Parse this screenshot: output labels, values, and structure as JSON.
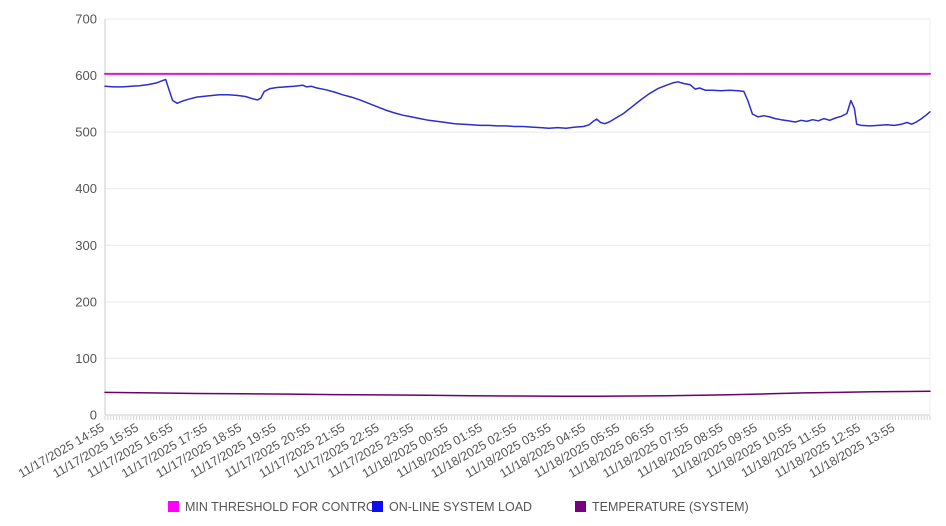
{
  "chart_data": {
    "type": "line",
    "title": "",
    "xlabel": "",
    "ylabel": "",
    "ylim": [
      0,
      700
    ],
    "yticks": [
      0,
      100,
      200,
      300,
      400,
      500,
      600,
      700
    ],
    "grid": "horizontal",
    "legend_position": "bottom",
    "x_minutes_span": 1440,
    "minor_tick_minutes": 5,
    "x_categories": [
      "11/17/2025 14:55",
      "11/17/2025 15:55",
      "11/17/2025 16:55",
      "11/17/2025 17:55",
      "11/17/2025 18:55",
      "11/17/2025 19:55",
      "11/17/2025 20:55",
      "11/17/2025 21:55",
      "11/17/2025 22:55",
      "11/17/2025 23:55",
      "11/18/2025 00:55",
      "11/18/2025 01:55",
      "11/18/2025 02:55",
      "11/18/2025 03:55",
      "11/18/2025 04:55",
      "11/18/2025 05:55",
      "11/18/2025 06:55",
      "11/18/2025 07:55",
      "11/18/2025 08:55",
      "11/18/2025 09:55",
      "11/18/2025 10:55",
      "11/18/2025 11:55",
      "11/18/2025 12:55",
      "11/18/2025 13:55"
    ],
    "axis_color": "#cccccc",
    "grid_color": "#e9e9e9",
    "tick_label_color": "#555555",
    "series": [
      {
        "name": "MIN THRESHOLD FOR CONTROL",
        "line_color": "#cc22cc",
        "swatch_color": "#ff00ff",
        "line_width": 2,
        "constant": 603
      },
      {
        "name": "ON-LINE SYSTEM LOAD",
        "line_color": "#2d2dcb",
        "swatch_color": "#0d0dee",
        "line_width": 1.5,
        "points": [
          [
            0,
            581
          ],
          [
            15,
            580
          ],
          [
            30,
            580
          ],
          [
            45,
            581
          ],
          [
            60,
            582
          ],
          [
            75,
            584
          ],
          [
            90,
            587
          ],
          [
            100,
            591
          ],
          [
            106,
            593
          ],
          [
            112,
            574
          ],
          [
            118,
            556
          ],
          [
            126,
            551
          ],
          [
            133,
            554
          ],
          [
            145,
            558
          ],
          [
            160,
            562
          ],
          [
            180,
            564
          ],
          [
            200,
            566
          ],
          [
            215,
            566
          ],
          [
            230,
            565
          ],
          [
            245,
            563
          ],
          [
            258,
            559
          ],
          [
            266,
            557
          ],
          [
            272,
            560
          ],
          [
            278,
            572
          ],
          [
            288,
            577
          ],
          [
            300,
            579
          ],
          [
            315,
            580
          ],
          [
            330,
            581
          ],
          [
            345,
            583
          ],
          [
            352,
            580
          ],
          [
            360,
            581
          ],
          [
            370,
            578
          ],
          [
            385,
            575
          ],
          [
            400,
            571
          ],
          [
            415,
            566
          ],
          [
            430,
            562
          ],
          [
            445,
            557
          ],
          [
            460,
            551
          ],
          [
            475,
            545
          ],
          [
            490,
            539
          ],
          [
            505,
            534
          ],
          [
            520,
            530
          ],
          [
            535,
            527
          ],
          [
            550,
            524
          ],
          [
            565,
            521
          ],
          [
            580,
            519
          ],
          [
            595,
            517
          ],
          [
            610,
            515
          ],
          [
            625,
            514
          ],
          [
            640,
            513
          ],
          [
            655,
            512
          ],
          [
            670,
            512
          ],
          [
            685,
            511
          ],
          [
            700,
            511
          ],
          [
            715,
            510
          ],
          [
            730,
            510
          ],
          [
            745,
            509
          ],
          [
            760,
            508
          ],
          [
            775,
            507
          ],
          [
            790,
            508
          ],
          [
            805,
            507
          ],
          [
            820,
            509
          ],
          [
            835,
            510
          ],
          [
            845,
            513
          ],
          [
            852,
            519
          ],
          [
            858,
            523
          ],
          [
            865,
            517
          ],
          [
            872,
            515
          ],
          [
            880,
            518
          ],
          [
            890,
            524
          ],
          [
            905,
            533
          ],
          [
            920,
            545
          ],
          [
            935,
            557
          ],
          [
            950,
            568
          ],
          [
            965,
            577
          ],
          [
            980,
            583
          ],
          [
            991,
            587
          ],
          [
            1000,
            589
          ],
          [
            1010,
            586
          ],
          [
            1021,
            584
          ],
          [
            1030,
            576
          ],
          [
            1038,
            578
          ],
          [
            1048,
            574
          ],
          [
            1060,
            574
          ],
          [
            1075,
            573
          ],
          [
            1090,
            574
          ],
          [
            1105,
            573
          ],
          [
            1115,
            572
          ],
          [
            1122,
            556
          ],
          [
            1130,
            532
          ],
          [
            1140,
            527
          ],
          [
            1150,
            529
          ],
          [
            1160,
            527
          ],
          [
            1170,
            524
          ],
          [
            1180,
            522
          ],
          [
            1192,
            520
          ],
          [
            1205,
            518
          ],
          [
            1215,
            521
          ],
          [
            1225,
            519
          ],
          [
            1235,
            522
          ],
          [
            1245,
            520
          ],
          [
            1255,
            524
          ],
          [
            1265,
            521
          ],
          [
            1275,
            525
          ],
          [
            1285,
            528
          ],
          [
            1295,
            533
          ],
          [
            1302,
            556
          ],
          [
            1308,
            542
          ],
          [
            1312,
            514
          ],
          [
            1320,
            512
          ],
          [
            1335,
            511
          ],
          [
            1350,
            512
          ],
          [
            1365,
            513
          ],
          [
            1378,
            512
          ],
          [
            1390,
            514
          ],
          [
            1400,
            517
          ],
          [
            1408,
            514
          ],
          [
            1416,
            518
          ],
          [
            1424,
            523
          ],
          [
            1432,
            529
          ],
          [
            1440,
            536
          ]
        ]
      },
      {
        "name": "TEMPERATURE (SYSTEM)",
        "line_color": "#6b006b",
        "swatch_color": "#750080",
        "line_width": 1.5,
        "points": [
          [
            0,
            40
          ],
          [
            80,
            39
          ],
          [
            160,
            38
          ],
          [
            240,
            37.5
          ],
          [
            320,
            37
          ],
          [
            400,
            36
          ],
          [
            480,
            35.5
          ],
          [
            560,
            35
          ],
          [
            640,
            34
          ],
          [
            720,
            33.5
          ],
          [
            800,
            33
          ],
          [
            860,
            33
          ],
          [
            920,
            33.5
          ],
          [
            980,
            34
          ],
          [
            1040,
            35
          ],
          [
            1100,
            36
          ],
          [
            1160,
            37.5
          ],
          [
            1220,
            39
          ],
          [
            1280,
            40
          ],
          [
            1340,
            41
          ],
          [
            1400,
            41.5
          ],
          [
            1440,
            42
          ]
        ]
      }
    ]
  }
}
